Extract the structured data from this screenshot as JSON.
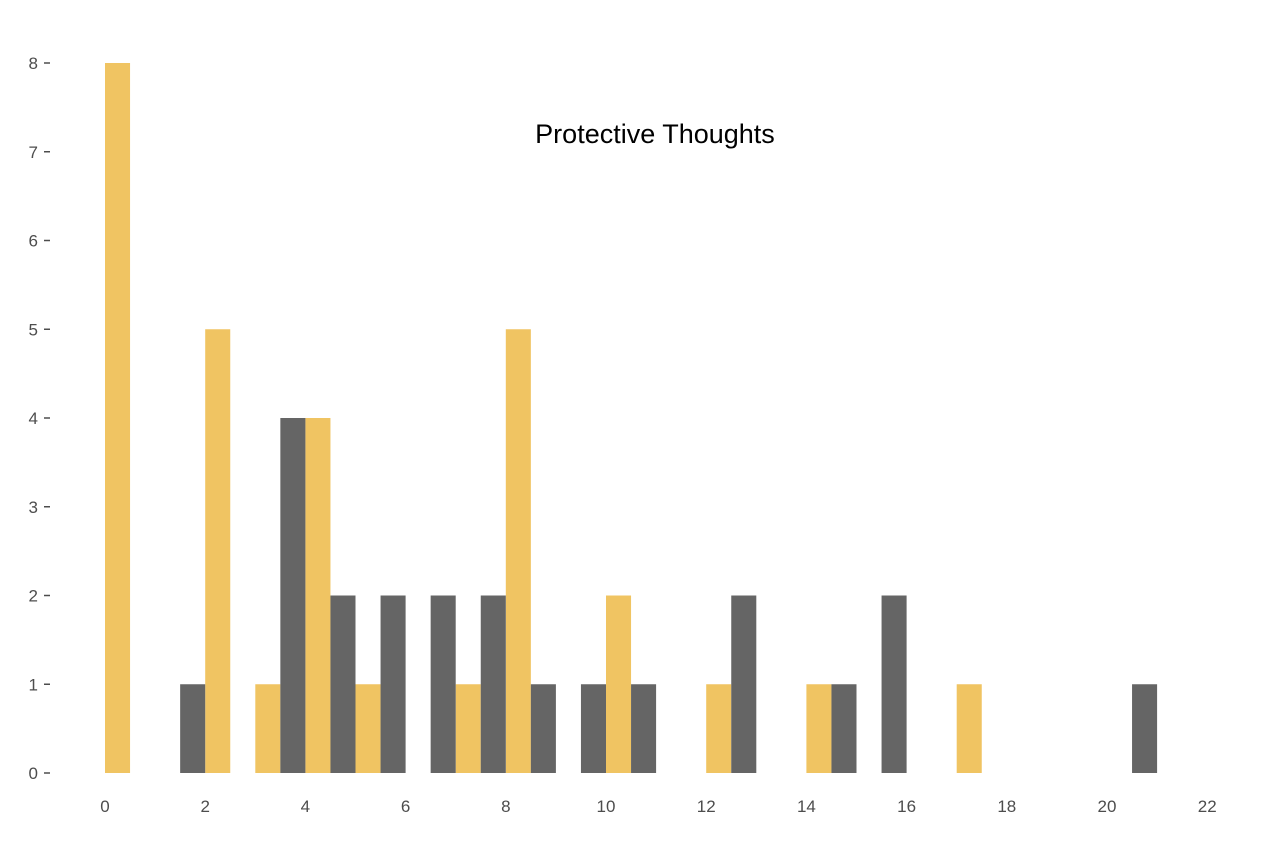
{
  "chart_data": {
    "type": "bar",
    "title": "Protective Thoughts",
    "xlabel": "",
    "ylabel": "",
    "xlim": [
      0,
      22
    ],
    "ylim": [
      0,
      8
    ],
    "x_ticks": [
      "0",
      "2",
      "4",
      "6",
      "8",
      "10",
      "12",
      "14",
      "16",
      "18",
      "20",
      "22"
    ],
    "y_ticks": [
      "0",
      "1",
      "2",
      "3",
      "4",
      "5",
      "6",
      "7",
      "8"
    ],
    "bin_width": 1,
    "legend": "none",
    "grid": false,
    "series": [
      {
        "color": "#f0c462",
        "x": [
          0,
          2,
          3,
          4,
          5,
          7,
          8,
          10,
          12,
          14,
          17
        ],
        "values": [
          8,
          5,
          1,
          4,
          1,
          1,
          5,
          2,
          1,
          1,
          1
        ]
      },
      {
        "color": "#656565",
        "x": [
          2,
          4,
          5,
          6,
          7,
          8,
          9,
          10,
          11,
          13,
          15,
          16,
          21
        ],
        "values": [
          1,
          4,
          2,
          2,
          2,
          2,
          1,
          1,
          1,
          2,
          1,
          2,
          1
        ]
      }
    ]
  }
}
